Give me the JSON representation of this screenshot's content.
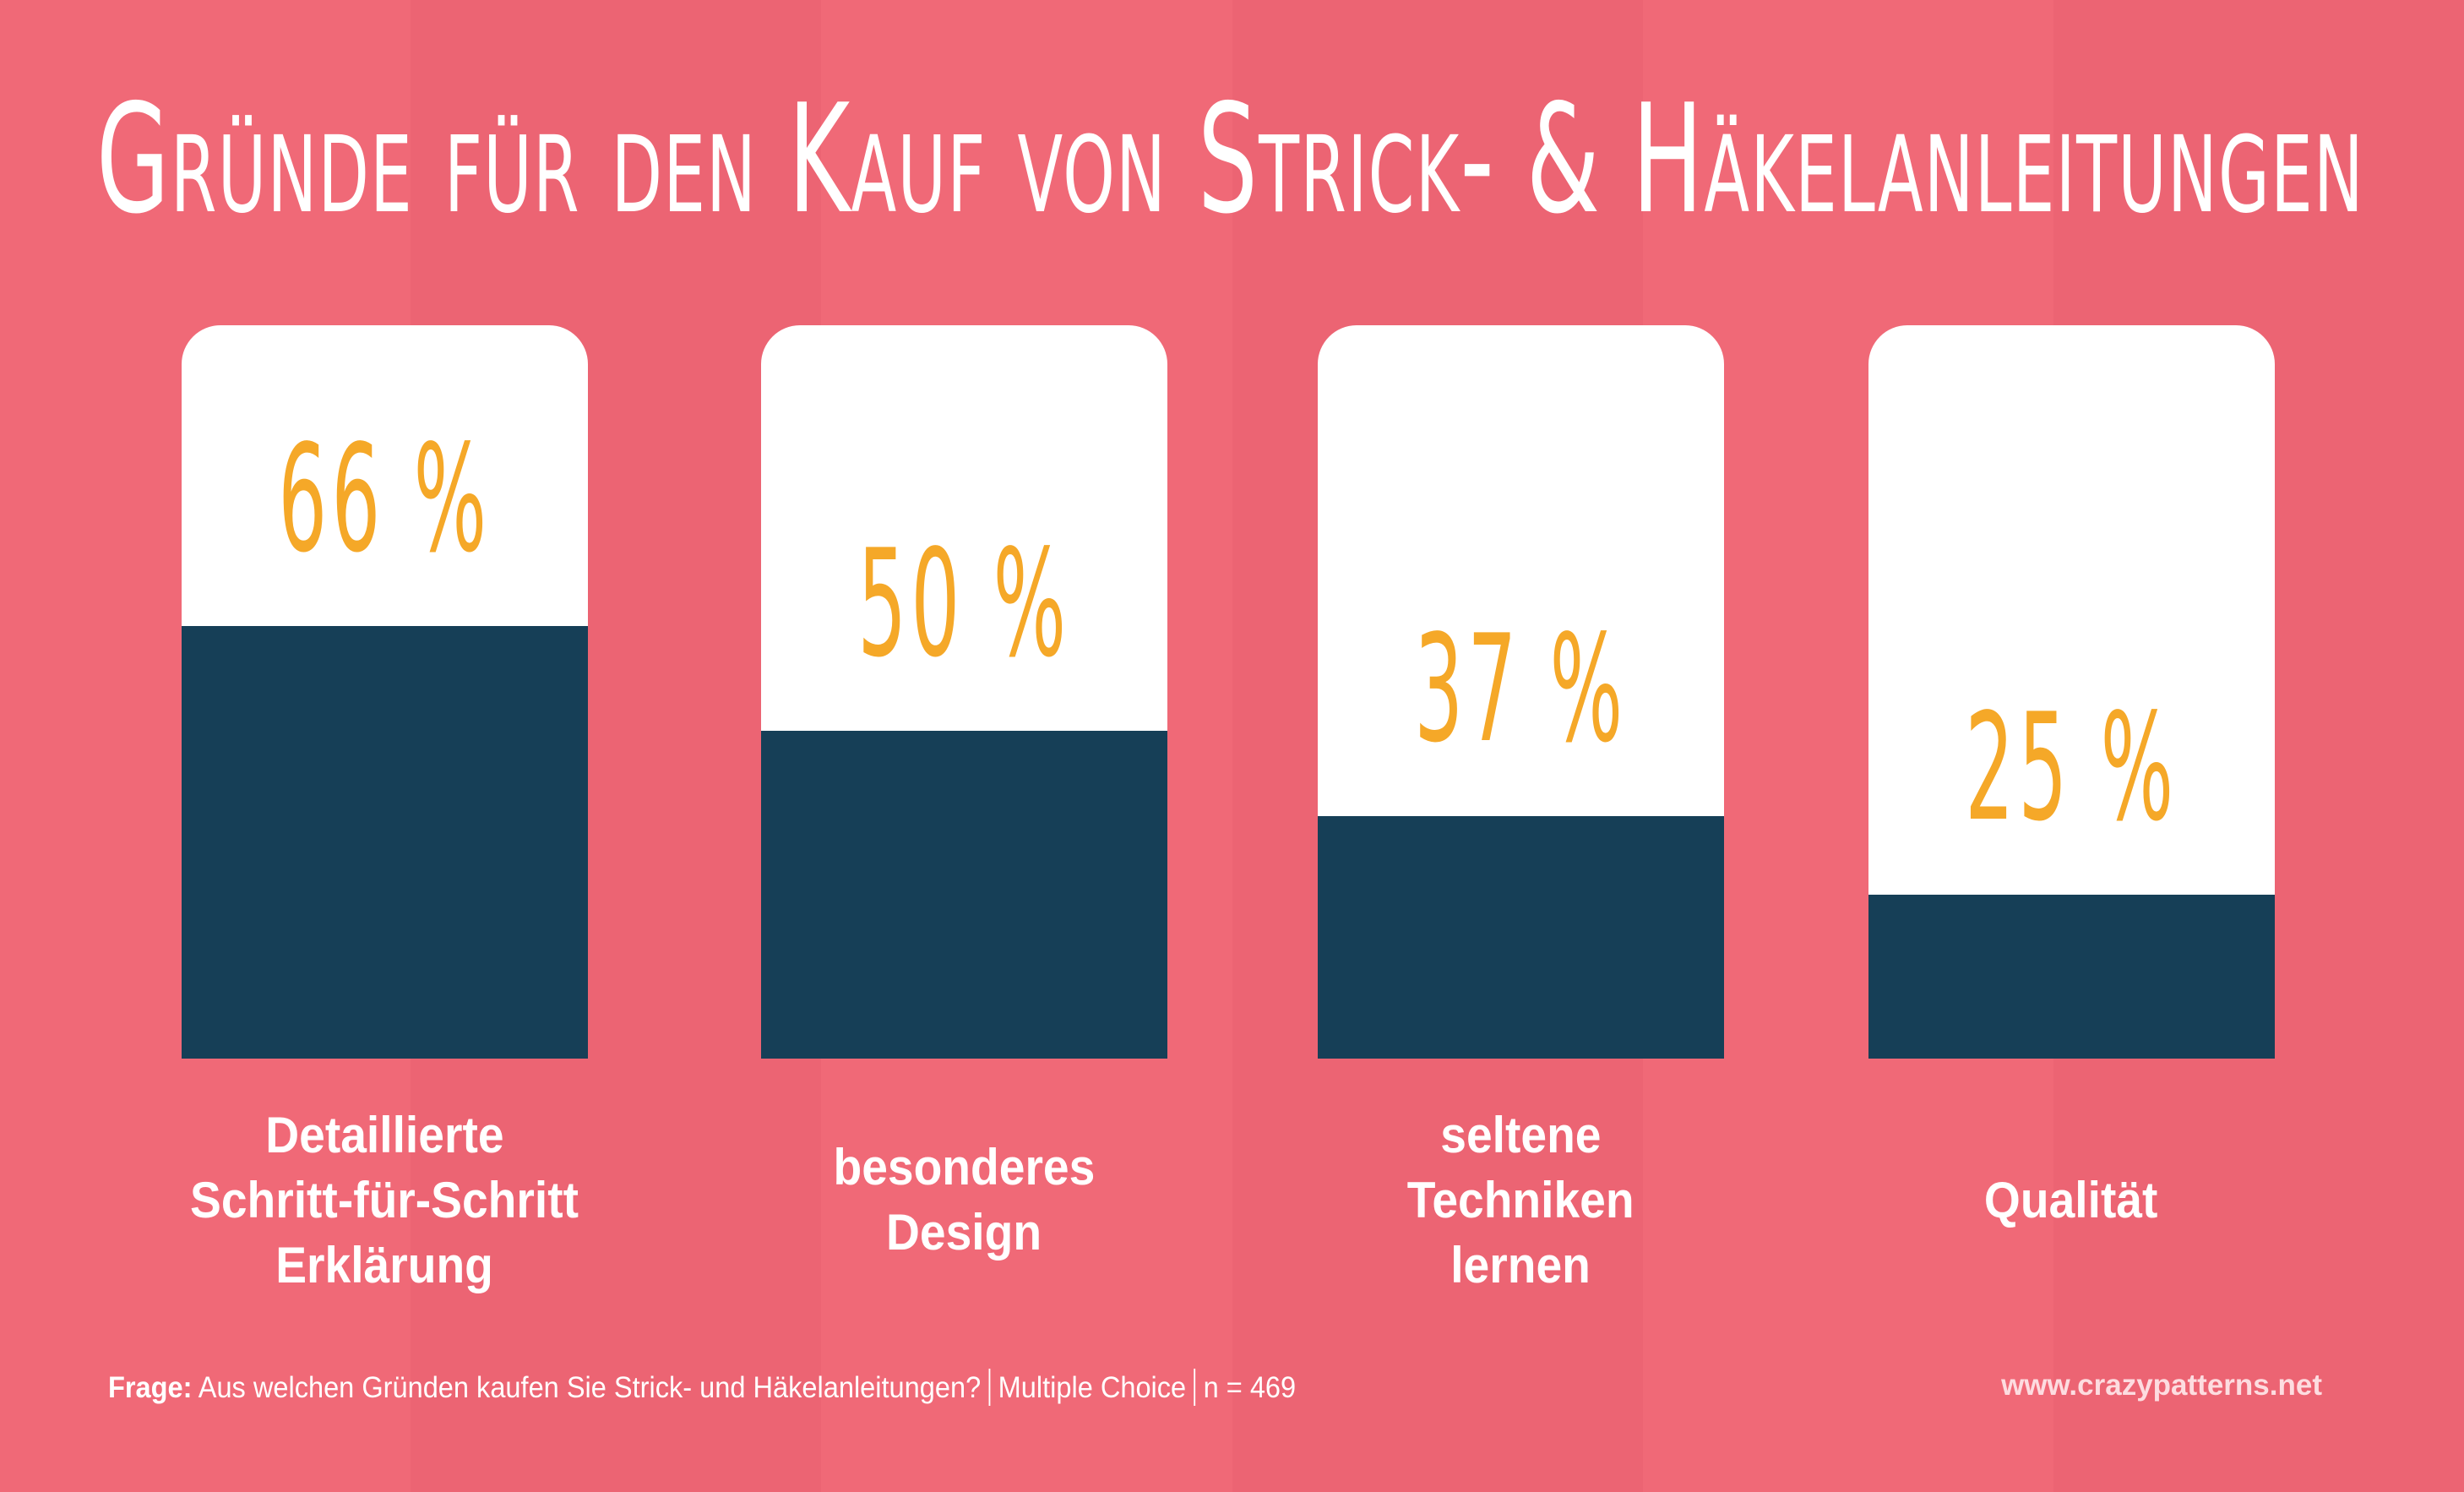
{
  "colors": {
    "background_light": "#F06977",
    "background_dark": "#EC6473",
    "card": "#FFFFFF",
    "bar_fill": "#163F57",
    "value_text": "#F5A828",
    "label_text": "#FFFFFF",
    "url_text": "#FDDCE0"
  },
  "title": "Gründe für den Kauf von Strick- & Häkelanleitungen",
  "bars": [
    {
      "label_lines": [
        "Detaillierte",
        "Schritt-für-Schritt",
        "Erklärung"
      ],
      "value": 66,
      "value_label": "66 %"
    },
    {
      "label_lines": [
        "besonderes",
        "Design"
      ],
      "value": 50,
      "value_label": "50 %"
    },
    {
      "label_lines": [
        "seltene",
        "Techniken",
        "lernen"
      ],
      "value": 37,
      "value_label": "37 %"
    },
    {
      "label_lines": [
        "Qualität"
      ],
      "value": 25,
      "value_label": "25 %"
    }
  ],
  "footer": {
    "question_label": "Frage:",
    "question_text": "Aus welchen Gründen kaufen Sie Strick- und Häkelanleitungen?",
    "answer_type": "Multiple Choice",
    "sample_size": "n = 469",
    "url": "www.crazypatterns.net"
  },
  "chart_data": {
    "type": "bar",
    "title": "Gründe für den Kauf von Strick- & Häkelanleitungen",
    "categories": [
      "Detaillierte Schritt-für-Schritt Erklärung",
      "besonderes Design",
      "seltene Techniken lernen",
      "Qualität"
    ],
    "values": [
      66,
      50,
      37,
      25
    ],
    "value_labels": [
      "66 %",
      "50 %",
      "37 %",
      "25 %"
    ],
    "unit": "%",
    "xlabel": "",
    "ylabel": "",
    "ylim": [
      0,
      100
    ],
    "grid": false,
    "legend": null,
    "annotations": [
      "Frage: Aus welchen Gründen kaufen Sie Strick- und Häkelanleitungen? | Multiple Choice | n = 469",
      "www.crazypatterns.net"
    ]
  }
}
